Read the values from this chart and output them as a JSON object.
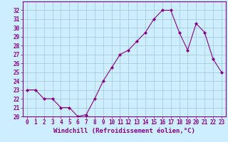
{
  "x": [
    0,
    1,
    2,
    3,
    4,
    5,
    6,
    7,
    8,
    9,
    10,
    11,
    12,
    13,
    14,
    15,
    16,
    17,
    18,
    19,
    20,
    21,
    22,
    23
  ],
  "y": [
    23,
    23,
    22,
    22,
    21,
    21,
    20,
    20.2,
    22,
    24,
    25.5,
    27,
    27.5,
    28.5,
    29.5,
    31,
    32,
    32,
    29.5,
    27.5,
    30.5,
    29.5,
    26.5,
    25
  ],
  "line_color": "#880088",
  "marker": "D",
  "marker_size": 2.0,
  "bg_color": "#cceeff",
  "grid_color": "#99bbcc",
  "xlabel": "Windchill (Refroidissement éolien,°C)",
  "xlabel_fontsize": 6.5,
  "tick_fontsize": 5.5,
  "ylim": [
    20,
    33
  ],
  "xlim": [
    -0.5,
    23.5
  ],
  "yticks": [
    20,
    21,
    22,
    23,
    24,
    25,
    26,
    27,
    28,
    29,
    30,
    31,
    32
  ],
  "xticks": [
    0,
    1,
    2,
    3,
    4,
    5,
    6,
    7,
    8,
    9,
    10,
    11,
    12,
    13,
    14,
    15,
    16,
    17,
    18,
    19,
    20,
    21,
    22,
    23
  ]
}
